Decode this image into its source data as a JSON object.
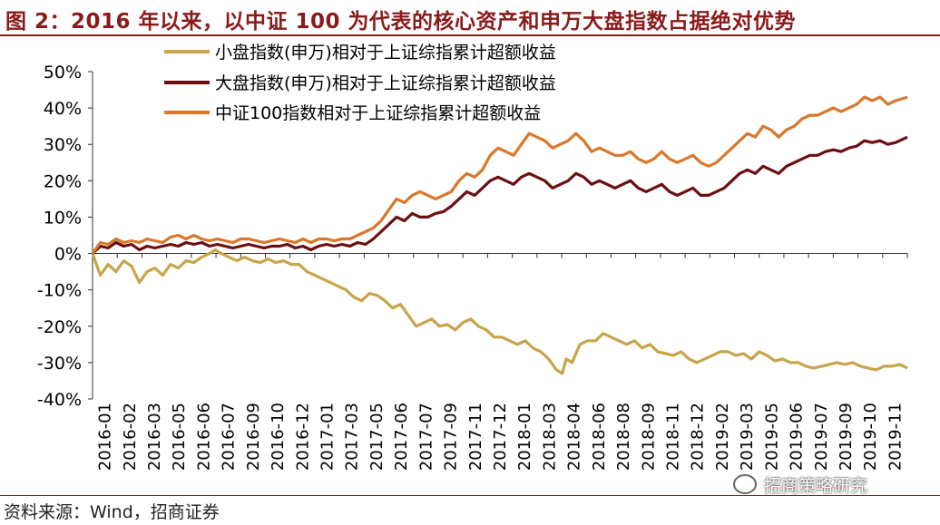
{
  "title": "图 2：2016 年以来，以中证 100 为代表的核心资产和申万大盘指数占据绝对优势",
  "source": "资料来源：Wind，招商证券",
  "watermark": "招商策略研究",
  "chart_data": {
    "type": "line",
    "ylim": [
      -40,
      50
    ],
    "yticks": [
      "50%",
      "40%",
      "30%",
      "20%",
      "10%",
      "0%",
      "-10%",
      "-20%",
      "-30%",
      "-40%"
    ],
    "grid": false,
    "legend_position": "top-center",
    "x": [
      "2016-01",
      "2016-02",
      "2016-03",
      "2016-05",
      "2016-06",
      "2016-07",
      "2016-09",
      "2016-10",
      "2016-12",
      "2017-01",
      "2017-03",
      "2017-05",
      "2017-06",
      "2017-07",
      "2017-09",
      "2017-11",
      "2017-12",
      "2018-01",
      "2018-03",
      "2018-04",
      "2018-06",
      "2018-08",
      "2018-09",
      "2018-11",
      "2018-12",
      "2019-02",
      "2019-03",
      "2019-05",
      "2019-06",
      "2019-07",
      "2019-09",
      "2019-10",
      "2019-11"
    ],
    "x_index_max": 36,
    "series": [
      {
        "name": "小盘指数(申万)相对于上证综指累计超额收益",
        "color": "#C8A54A",
        "points": [
          [
            0,
            0
          ],
          [
            0.4,
            -6
          ],
          [
            0.8,
            -3
          ],
          [
            1.2,
            -5
          ],
          [
            1.6,
            -2
          ],
          [
            2,
            -3.5
          ],
          [
            2.4,
            -8
          ],
          [
            2.8,
            -5
          ],
          [
            3.2,
            -4
          ],
          [
            3.6,
            -6
          ],
          [
            4,
            -3
          ],
          [
            4.4,
            -4
          ],
          [
            4.8,
            -2
          ],
          [
            5.2,
            -2.5
          ],
          [
            5.6,
            -1
          ],
          [
            6,
            0
          ],
          [
            6.3,
            1
          ],
          [
            6.6,
            0
          ],
          [
            7,
            -1
          ],
          [
            7.4,
            -2
          ],
          [
            7.8,
            -1
          ],
          [
            8.2,
            -2
          ],
          [
            8.6,
            -2.5
          ],
          [
            9,
            -1.5
          ],
          [
            9.4,
            -2.5
          ],
          [
            9.8,
            -2
          ],
          [
            10.2,
            -3
          ],
          [
            10.6,
            -3
          ],
          [
            11,
            -5
          ],
          [
            11.4,
            -6
          ],
          [
            11.8,
            -7
          ],
          [
            12.2,
            -8
          ],
          [
            12.6,
            -9
          ],
          [
            13,
            -10
          ],
          [
            13.4,
            -12
          ],
          [
            13.8,
            -13
          ],
          [
            14.2,
            -11
          ],
          [
            14.6,
            -11.5
          ],
          [
            15,
            -13
          ],
          [
            15.4,
            -15
          ],
          [
            15.8,
            -14
          ],
          [
            16.2,
            -17
          ],
          [
            16.6,
            -20
          ],
          [
            17,
            -19
          ],
          [
            17.4,
            -18
          ],
          [
            17.8,
            -20
          ],
          [
            18.2,
            -19.5
          ],
          [
            18.6,
            -21
          ],
          [
            19,
            -19
          ],
          [
            19.4,
            -18
          ],
          [
            19.8,
            -20
          ],
          [
            20.2,
            -21
          ],
          [
            20.6,
            -23
          ],
          [
            21,
            -23
          ],
          [
            21.4,
            -24
          ],
          [
            21.8,
            -25
          ],
          [
            22.2,
            -24
          ],
          [
            22.6,
            -26
          ],
          [
            23,
            -27
          ],
          [
            23.4,
            -29
          ],
          [
            23.8,
            -32
          ],
          [
            24.1,
            -33
          ],
          [
            24.3,
            -29
          ],
          [
            24.6,
            -30
          ],
          [
            25,
            -25
          ],
          [
            25.4,
            -24
          ],
          [
            25.8,
            -24
          ],
          [
            26.2,
            -22
          ],
          [
            26.6,
            -23
          ],
          [
            27,
            -24
          ],
          [
            27.4,
            -25
          ],
          [
            27.8,
            -24
          ],
          [
            28.2,
            -26
          ],
          [
            28.6,
            -25
          ],
          [
            29,
            -27
          ],
          [
            29.4,
            -27.5
          ],
          [
            29.8,
            -28
          ],
          [
            30.2,
            -27
          ],
          [
            30.6,
            -29
          ],
          [
            31,
            -30
          ],
          [
            31.4,
            -29
          ],
          [
            31.8,
            -28
          ],
          [
            32.2,
            -27
          ],
          [
            32.6,
            -27
          ],
          [
            33,
            -28
          ],
          [
            33.4,
            -27.5
          ],
          [
            33.8,
            -29
          ],
          [
            34.2,
            -27
          ],
          [
            34.6,
            -28
          ],
          [
            35,
            -29.5
          ],
          [
            35.4,
            -29
          ],
          [
            35.8,
            -30
          ],
          [
            36.2,
            -30
          ],
          [
            36.6,
            -31
          ],
          [
            37,
            -31.5
          ],
          [
            37.4,
            -31
          ],
          [
            37.8,
            -30.5
          ],
          [
            38.2,
            -30
          ],
          [
            38.6,
            -30.5
          ],
          [
            39,
            -30
          ],
          [
            39.4,
            -31
          ],
          [
            39.8,
            -31.5
          ],
          [
            40.2,
            -32
          ],
          [
            40.6,
            -31
          ],
          [
            41,
            -31
          ],
          [
            41.4,
            -30.5
          ],
          [
            41.8,
            -31.5
          ]
        ]
      },
      {
        "name": "大盘指数(申万)相对于上证综指累计超额收益",
        "color": "#6B0F12",
        "points": [
          [
            0,
            0
          ],
          [
            0.4,
            2
          ],
          [
            0.8,
            1.5
          ],
          [
            1.2,
            3
          ],
          [
            1.6,
            2
          ],
          [
            2,
            2.5
          ],
          [
            2.4,
            1
          ],
          [
            2.8,
            2
          ],
          [
            3.2,
            1.5
          ],
          [
            3.6,
            2
          ],
          [
            4,
            2.5
          ],
          [
            4.4,
            2
          ],
          [
            4.8,
            3
          ],
          [
            5.2,
            2.5
          ],
          [
            5.6,
            3
          ],
          [
            6,
            2
          ],
          [
            6.4,
            2.5
          ],
          [
            6.8,
            2
          ],
          [
            7.2,
            1.5
          ],
          [
            7.6,
            2
          ],
          [
            8,
            2.5
          ],
          [
            8.4,
            2
          ],
          [
            8.8,
            1.5
          ],
          [
            9.2,
            2
          ],
          [
            9.6,
            2
          ],
          [
            10,
            2.5
          ],
          [
            10.4,
            1.5
          ],
          [
            10.8,
            2
          ],
          [
            11.2,
            1
          ],
          [
            11.6,
            2
          ],
          [
            12,
            2.5
          ],
          [
            12.4,
            2
          ],
          [
            12.8,
            2.5
          ],
          [
            13.2,
            2
          ],
          [
            13.6,
            3
          ],
          [
            14,
            2.5
          ],
          [
            14.4,
            4
          ],
          [
            14.8,
            6
          ],
          [
            15.2,
            8
          ],
          [
            15.6,
            10
          ],
          [
            16,
            9
          ],
          [
            16.4,
            11
          ],
          [
            16.8,
            10
          ],
          [
            17.2,
            10
          ],
          [
            17.6,
            11
          ],
          [
            18,
            11.5
          ],
          [
            18.4,
            13
          ],
          [
            18.8,
            15
          ],
          [
            19.2,
            17
          ],
          [
            19.6,
            16
          ],
          [
            20,
            18
          ],
          [
            20.4,
            20
          ],
          [
            20.8,
            21
          ],
          [
            21.2,
            20
          ],
          [
            21.6,
            19
          ],
          [
            22,
            21
          ],
          [
            22.4,
            22
          ],
          [
            22.8,
            21
          ],
          [
            23.2,
            20
          ],
          [
            23.6,
            18
          ],
          [
            24,
            19
          ],
          [
            24.4,
            20
          ],
          [
            24.8,
            22
          ],
          [
            25.2,
            21
          ],
          [
            25.6,
            19
          ],
          [
            26,
            20
          ],
          [
            26.4,
            19
          ],
          [
            26.8,
            18
          ],
          [
            27.2,
            19
          ],
          [
            27.6,
            20
          ],
          [
            28,
            18
          ],
          [
            28.4,
            17
          ],
          [
            28.8,
            18
          ],
          [
            29.2,
            19
          ],
          [
            29.6,
            17
          ],
          [
            30,
            16
          ],
          [
            30.4,
            17
          ],
          [
            30.8,
            18
          ],
          [
            31.2,
            16
          ],
          [
            31.6,
            16
          ],
          [
            32,
            17
          ],
          [
            32.4,
            18
          ],
          [
            32.8,
            20
          ],
          [
            33.2,
            22
          ],
          [
            33.6,
            23
          ],
          [
            34,
            22
          ],
          [
            34.4,
            24
          ],
          [
            34.8,
            23
          ],
          [
            35.2,
            22
          ],
          [
            35.6,
            24
          ],
          [
            36,
            25
          ],
          [
            36.4,
            26
          ],
          [
            36.8,
            27
          ],
          [
            37.2,
            27
          ],
          [
            37.6,
            28
          ],
          [
            38,
            28.5
          ],
          [
            38.4,
            28
          ],
          [
            38.8,
            29
          ],
          [
            39.2,
            29.5
          ],
          [
            39.6,
            31
          ],
          [
            40,
            30.5
          ],
          [
            40.4,
            31
          ],
          [
            40.8,
            30
          ],
          [
            41.2,
            30.5
          ],
          [
            41.8,
            32
          ]
        ]
      },
      {
        "name": "中证100指数相对于上证综指累计超额收益",
        "color": "#D9772B",
        "points": [
          [
            0,
            0
          ],
          [
            0.4,
            3
          ],
          [
            0.8,
            2.5
          ],
          [
            1.2,
            4
          ],
          [
            1.6,
            3
          ],
          [
            2,
            3.5
          ],
          [
            2.4,
            3
          ],
          [
            2.8,
            4
          ],
          [
            3.2,
            3.5
          ],
          [
            3.6,
            3
          ],
          [
            4,
            4.5
          ],
          [
            4.4,
            5
          ],
          [
            4.8,
            4
          ],
          [
            5.2,
            5
          ],
          [
            5.6,
            4
          ],
          [
            6,
            3.5
          ],
          [
            6.4,
            4
          ],
          [
            6.8,
            3.5
          ],
          [
            7.2,
            3
          ],
          [
            7.6,
            4
          ],
          [
            8,
            4
          ],
          [
            8.4,
            3.5
          ],
          [
            8.8,
            3
          ],
          [
            9.2,
            3.5
          ],
          [
            9.6,
            4
          ],
          [
            10,
            3.5
          ],
          [
            10.4,
            3
          ],
          [
            10.8,
            4
          ],
          [
            11.2,
            3
          ],
          [
            11.6,
            4
          ],
          [
            12,
            4
          ],
          [
            12.4,
            3.5
          ],
          [
            12.8,
            4
          ],
          [
            13.2,
            4
          ],
          [
            13.6,
            5
          ],
          [
            14,
            6
          ],
          [
            14.4,
            7
          ],
          [
            14.8,
            9
          ],
          [
            15.2,
            12
          ],
          [
            15.6,
            15
          ],
          [
            16,
            14
          ],
          [
            16.4,
            16
          ],
          [
            16.8,
            17
          ],
          [
            17.2,
            16
          ],
          [
            17.6,
            15
          ],
          [
            18,
            16
          ],
          [
            18.4,
            17
          ],
          [
            18.8,
            20
          ],
          [
            19.2,
            22
          ],
          [
            19.6,
            21
          ],
          [
            20,
            23
          ],
          [
            20.4,
            27
          ],
          [
            20.8,
            29
          ],
          [
            21.2,
            28
          ],
          [
            21.6,
            27
          ],
          [
            22,
            30
          ],
          [
            22.4,
            33
          ],
          [
            22.8,
            32
          ],
          [
            23.2,
            31
          ],
          [
            23.6,
            29
          ],
          [
            24,
            30
          ],
          [
            24.4,
            31
          ],
          [
            24.8,
            33
          ],
          [
            25.2,
            31
          ],
          [
            25.6,
            28
          ],
          [
            26,
            29
          ],
          [
            26.4,
            28
          ],
          [
            26.8,
            27
          ],
          [
            27.2,
            27
          ],
          [
            27.6,
            28
          ],
          [
            28,
            26
          ],
          [
            28.4,
            25
          ],
          [
            28.8,
            26
          ],
          [
            29.2,
            28
          ],
          [
            29.6,
            26
          ],
          [
            30,
            25
          ],
          [
            30.4,
            26
          ],
          [
            30.8,
            27
          ],
          [
            31.2,
            25
          ],
          [
            31.6,
            24
          ],
          [
            32,
            25
          ],
          [
            32.4,
            27
          ],
          [
            32.8,
            29
          ],
          [
            33.2,
            31
          ],
          [
            33.6,
            33
          ],
          [
            34,
            32
          ],
          [
            34.4,
            35
          ],
          [
            34.8,
            34
          ],
          [
            35.2,
            32
          ],
          [
            35.6,
            34
          ],
          [
            36,
            35
          ],
          [
            36.4,
            37
          ],
          [
            36.8,
            38
          ],
          [
            37.2,
            38
          ],
          [
            37.6,
            39
          ],
          [
            38,
            40
          ],
          [
            38.4,
            39
          ],
          [
            38.8,
            40
          ],
          [
            39.2,
            41
          ],
          [
            39.6,
            43
          ],
          [
            40,
            42
          ],
          [
            40.4,
            43
          ],
          [
            40.8,
            41
          ],
          [
            41.2,
            42
          ],
          [
            41.8,
            43
          ]
        ]
      }
    ]
  }
}
